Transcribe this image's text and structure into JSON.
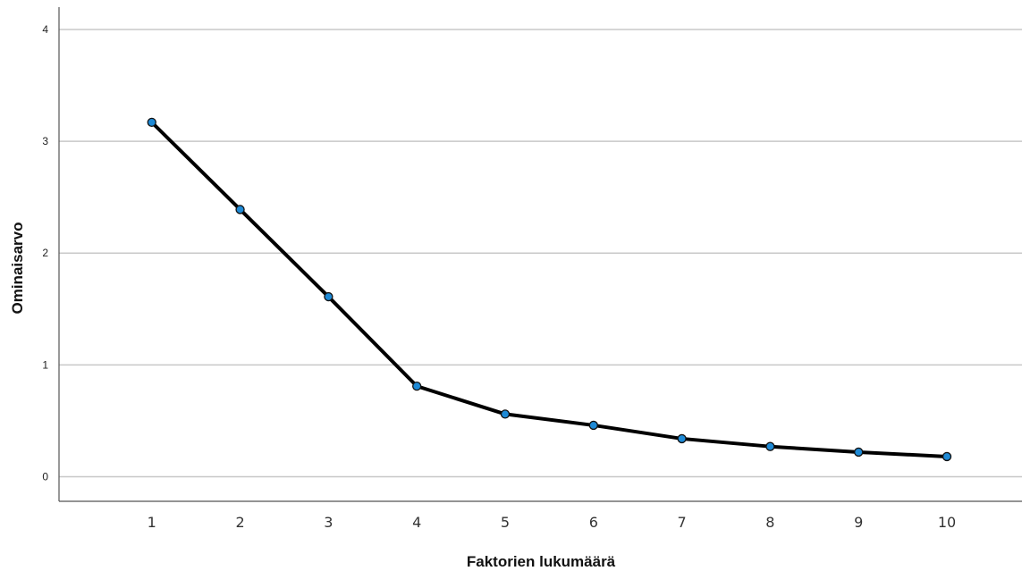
{
  "chart_data": {
    "type": "line",
    "title": "",
    "xlabel": "Faktorien lukumäärä",
    "ylabel": "Ominaisarvo",
    "x": [
      1,
      2,
      3,
      4,
      5,
      6,
      7,
      8,
      9,
      10
    ],
    "xticks": [
      "1",
      "2",
      "3",
      "4",
      "5",
      "6",
      "7",
      "8",
      "9",
      "10"
    ],
    "yticks": [
      "0",
      "1",
      "2",
      "3",
      "4"
    ],
    "ylim": [
      -0.22,
      4.2
    ],
    "xlim": [
      -0.05,
      10.85
    ],
    "grid": "horizontal",
    "series": [
      {
        "values": [
          3.17,
          2.39,
          1.61,
          0.81,
          0.56,
          0.46,
          0.34,
          0.27,
          0.22,
          0.18
        ],
        "line_color": "#000000",
        "marker_color": "#1e8ad6"
      }
    ]
  }
}
